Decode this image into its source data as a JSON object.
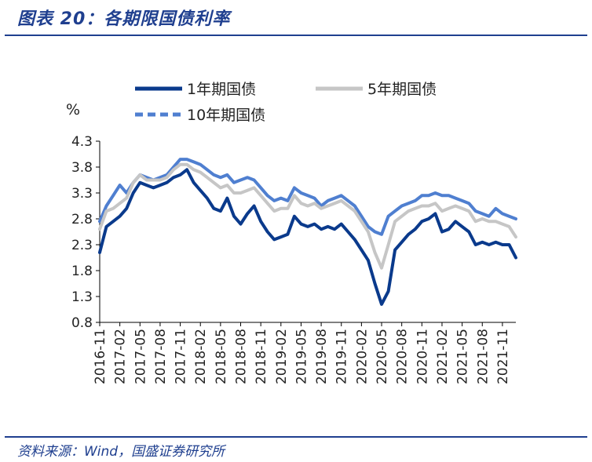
{
  "header": {
    "title": "图表 20：各期限国债利率"
  },
  "footer": {
    "source": "资料来源：Wind，国盛证券研究所"
  },
  "colors": {
    "accent": "#1f3f8f",
    "s1": "#0a3a8c",
    "s5": "#c6c6c6",
    "s10": "#4f7fd0"
  },
  "chart_data": {
    "type": "line",
    "title": "各期限国债利率",
    "ylabel": "%",
    "xlabel": "",
    "ylim": [
      0.8,
      4.3
    ],
    "yticks": [
      "0.8",
      "1.3",
      "1.8",
      "2.3",
      "2.8",
      "3.3",
      "3.8",
      "4.3"
    ],
    "xticks": [
      "2016-11",
      "2017-02",
      "2017-05",
      "2017-08",
      "2017-11",
      "2018-02",
      "2018-05",
      "2018-08",
      "2018-11",
      "2019-02",
      "2019-05",
      "2019-08",
      "2019-11",
      "2020-02",
      "2020-05",
      "2020-08",
      "2020-11",
      "2021-02",
      "2021-05",
      "2021-08",
      "2021-11"
    ],
    "legend_position": "top",
    "x": [
      "2016-11",
      "2016-12",
      "2017-01",
      "2017-02",
      "2017-03",
      "2017-04",
      "2017-05",
      "2017-06",
      "2017-07",
      "2017-08",
      "2017-09",
      "2017-10",
      "2017-11",
      "2017-12",
      "2018-01",
      "2018-02",
      "2018-03",
      "2018-04",
      "2018-05",
      "2018-06",
      "2018-07",
      "2018-08",
      "2018-09",
      "2018-10",
      "2018-11",
      "2018-12",
      "2019-01",
      "2019-02",
      "2019-03",
      "2019-04",
      "2019-05",
      "2019-06",
      "2019-07",
      "2019-08",
      "2019-09",
      "2019-10",
      "2019-11",
      "2019-12",
      "2020-01",
      "2020-02",
      "2020-03",
      "2020-04",
      "2020-05",
      "2020-06",
      "2020-07",
      "2020-08",
      "2020-09",
      "2020-10",
      "2020-11",
      "2020-12",
      "2021-01",
      "2021-02",
      "2021-03",
      "2021-04",
      "2021-05",
      "2021-06",
      "2021-07",
      "2021-08",
      "2021-09",
      "2021-10",
      "2021-11",
      "2021-12",
      "2022-01"
    ],
    "series": [
      {
        "name": "1年期国债",
        "color": "#0a3a8c",
        "dashed": false,
        "values": [
          2.15,
          2.65,
          2.75,
          2.85,
          3.0,
          3.3,
          3.5,
          3.45,
          3.4,
          3.45,
          3.5,
          3.6,
          3.65,
          3.75,
          3.5,
          3.35,
          3.2,
          3.0,
          2.95,
          3.2,
          2.85,
          2.7,
          2.9,
          3.05,
          2.75,
          2.55,
          2.4,
          2.45,
          2.5,
          2.85,
          2.7,
          2.65,
          2.7,
          2.6,
          2.65,
          2.6,
          2.7,
          2.55,
          2.4,
          2.2,
          2.0,
          1.55,
          1.15,
          1.4,
          2.2,
          2.35,
          2.5,
          2.6,
          2.75,
          2.8,
          2.9,
          2.55,
          2.6,
          2.75,
          2.65,
          2.55,
          2.3,
          2.35,
          2.3,
          2.35,
          2.3,
          2.3,
          2.05
        ]
      },
      {
        "name": "5年期国债",
        "color": "#c6c6c6",
        "dashed": false,
        "values": [
          2.6,
          2.95,
          3.0,
          3.1,
          3.2,
          3.5,
          3.65,
          3.55,
          3.55,
          3.55,
          3.6,
          3.75,
          3.85,
          3.85,
          3.75,
          3.7,
          3.6,
          3.5,
          3.4,
          3.45,
          3.3,
          3.3,
          3.35,
          3.4,
          3.25,
          3.1,
          2.95,
          3.0,
          3.0,
          3.25,
          3.1,
          3.05,
          3.1,
          3.0,
          3.05,
          3.1,
          3.15,
          3.05,
          2.95,
          2.75,
          2.55,
          2.15,
          1.85,
          2.3,
          2.75,
          2.85,
          2.95,
          3.0,
          3.05,
          3.05,
          3.1,
          2.95,
          3.0,
          3.05,
          3.0,
          2.95,
          2.75,
          2.8,
          2.75,
          2.75,
          2.7,
          2.65,
          2.45
        ]
      },
      {
        "name": "10年期国债",
        "color": "#4f7fd0",
        "dashed": true,
        "values": [
          2.75,
          3.05,
          3.25,
          3.45,
          3.3,
          3.5,
          3.65,
          3.6,
          3.55,
          3.6,
          3.65,
          3.8,
          3.95,
          3.95,
          3.9,
          3.85,
          3.75,
          3.65,
          3.6,
          3.65,
          3.5,
          3.55,
          3.6,
          3.55,
          3.4,
          3.25,
          3.15,
          3.2,
          3.15,
          3.4,
          3.3,
          3.25,
          3.2,
          3.05,
          3.15,
          3.2,
          3.25,
          3.15,
          3.05,
          2.85,
          2.65,
          2.55,
          2.5,
          2.85,
          2.95,
          3.05,
          3.1,
          3.15,
          3.25,
          3.25,
          3.3,
          3.25,
          3.25,
          3.2,
          3.15,
          3.1,
          2.95,
          2.9,
          2.85,
          3.0,
          2.9,
          2.85,
          2.8
        ]
      }
    ]
  }
}
